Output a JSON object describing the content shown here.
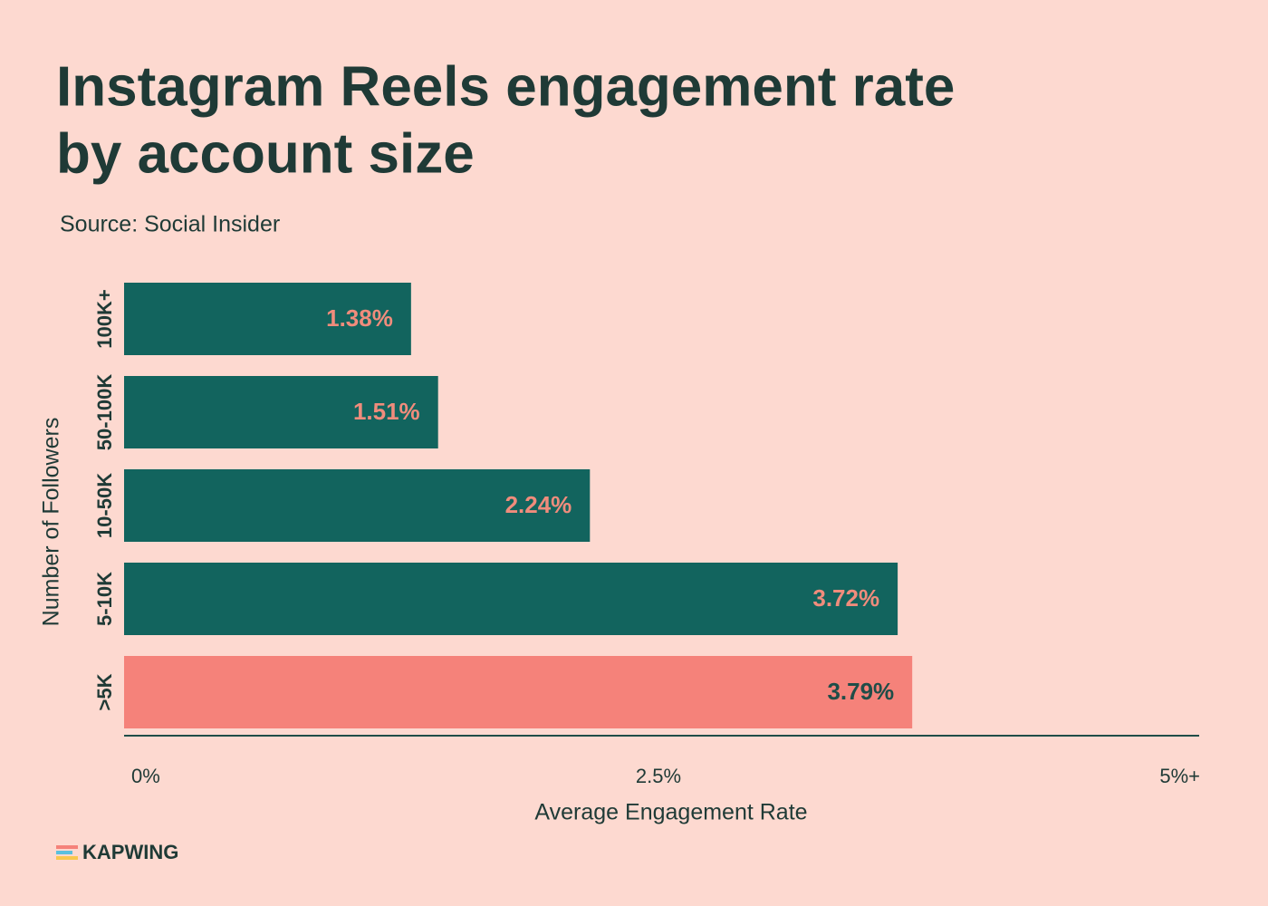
{
  "chart_data": {
    "type": "bar",
    "orientation": "horizontal",
    "title": [
      "Instagram Reels engagement rate",
      "by account size"
    ],
    "subtitle": "Source: Social Insider",
    "categories": [
      "100K+",
      "50-100K",
      "10-50K",
      "5-10K",
      ">5K"
    ],
    "values": [
      1.38,
      1.51,
      2.24,
      3.72,
      3.79
    ],
    "value_labels": [
      "1.38%",
      "1.51%",
      "2.24%",
      "3.72%",
      "3.79%"
    ],
    "colors": [
      "#12645e",
      "#12645e",
      "#12645e",
      "#12645e",
      "#f5827a"
    ],
    "label_colors": [
      "#f08c7c",
      "#f08c7c",
      "#f08c7c",
      "#f08c7c",
      "#1f4d48"
    ],
    "xlim": [
      0,
      5
    ],
    "xticks": [
      {
        "value": 0,
        "label": "0%"
      },
      {
        "value": 2.5,
        "label": "2.5%"
      },
      {
        "value": 5,
        "label": "5%+"
      }
    ],
    "xlabel": "Average Engagement Rate",
    "ylabel": "Number of Followers",
    "grid": false
  },
  "footer": {
    "logo": "KAPWING"
  }
}
